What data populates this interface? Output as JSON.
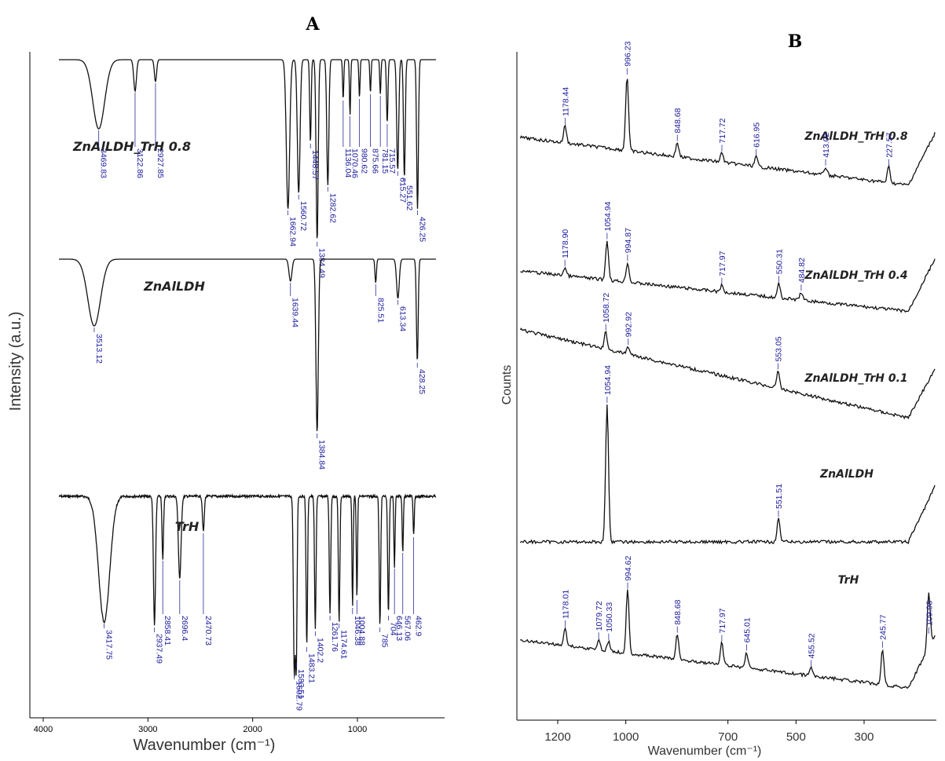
{
  "panels": {
    "a": "A",
    "b": "B"
  },
  "chart_data": [
    {
      "type": "line",
      "panel": "A",
      "xlabel": "Wavenumber (cm⁻¹)",
      "ylabel": "Intensity (a.u.)",
      "xlim": [
        4000,
        250
      ],
      "x_ticks": [
        "4000",
        "3000",
        "2000",
        "1000"
      ],
      "x_tick_values": [
        4000,
        3000,
        2000,
        1000
      ],
      "series": [
        {
          "name": "ZnAlLDH_TrH 0.8",
          "peaks": [
            3469.83,
            3122.86,
            2927.85,
            1662.94,
            1560.72,
            1448.57,
            1384.49,
            1282.62,
            1136.04,
            1070.46,
            980.62,
            875.66,
            781.15,
            715.57,
            615.27,
            551.62,
            426.25
          ],
          "peak_labels": [
            "3469.83",
            "3122.86",
            "2927.85",
            "1662.94",
            "1560.72",
            "1448.57",
            "1384.49",
            "1282.62",
            "1136.04",
            "1070.46",
            "980.62",
            "875.66",
            "781.15",
            "715.57",
            "615.27",
            "551.62",
            "426.25"
          ]
        },
        {
          "name": "ZnAlLDH",
          "peaks": [
            3513.12,
            1639.44,
            1384.84,
            825.51,
            613.34,
            428.25
          ],
          "peak_labels": [
            "3513.12",
            "1639.44",
            "1384.84",
            "825.51",
            "613.34",
            "428.25"
          ]
        },
        {
          "name": "TrH",
          "peaks": [
            3417.75,
            2937.49,
            2858.41,
            2696.4,
            2470.73,
            1602.79,
            1583.51,
            1483.21,
            1402.2,
            1261.76,
            1174.61,
            1046.38,
            1004.88,
            785,
            704,
            646.13,
            567.06,
            462.9
          ],
          "peak_labels": [
            "3417.75",
            "2937.49",
            "2858.41",
            "2696.4",
            "2470.73",
            "1602.79",
            "1583.51",
            "1483.21",
            "1402.2",
            "1261.76",
            "1174.61",
            "1046.38",
            "1004.88",
            "785",
            "704",
            "646.13",
            "567.06",
            "462.9"
          ]
        }
      ]
    },
    {
      "type": "line",
      "panel": "B",
      "xlabel": "Wavenumber (cm⁻¹)",
      "ylabel": "Counts",
      "xlim": [
        1310,
        90
      ],
      "x_ticks": [
        "1200",
        "1000",
        "700",
        "500",
        "300"
      ],
      "x_tick_values": [
        1200,
        1000,
        700,
        500,
        300
      ],
      "series": [
        {
          "name": "ZnAlLDH_TrH 0.8",
          "peaks": [
            1178.44,
            996.23,
            848.68,
            717.72,
            616.95,
            413.02,
            227.57
          ],
          "peak_labels": [
            "1178.44",
            "996.23",
            "848.68",
            "717.72",
            "616.95",
            "413.02",
            "227.57"
          ]
        },
        {
          "name": "ZnAlLDH_TrH 0.4",
          "peaks": [
            1178.9,
            1054.94,
            994.87,
            717.97,
            550.31,
            484.82
          ],
          "peak_labels": [
            "1178.90",
            "1054.94",
            "994.87",
            "717.97",
            "550.31",
            "484.82"
          ]
        },
        {
          "name": "ZnAlLDH_TrH 0.1",
          "peaks": [
            1058.72,
            992.92,
            553.05
          ],
          "peak_labels": [
            "1058.72",
            "992.92",
            "553.05"
          ]
        },
        {
          "name": "ZnAlLDH",
          "peaks": [
            1054.94,
            551.51
          ],
          "peak_labels": [
            "1054.94",
            "551.51"
          ]
        },
        {
          "name": "TrH",
          "peaks": [
            1178.01,
            1079.72,
            1050.33,
            994.62,
            848.68,
            717.97,
            645.01,
            455.52,
            245.77,
            109.98
          ],
          "peak_labels": [
            "1178.01",
            "1079.72",
            "1050.33",
            "994.62",
            "848.68",
            "717.97",
            "645.01",
            "455.52",
            "245.77",
            "109.98"
          ]
        }
      ]
    }
  ]
}
